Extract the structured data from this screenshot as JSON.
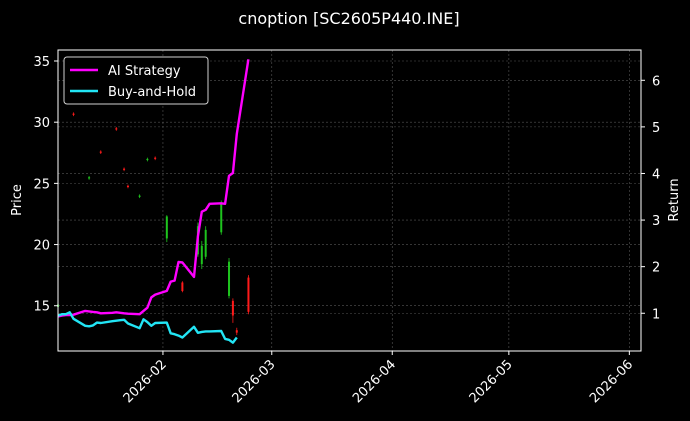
{
  "chart_data": {
    "type": "line",
    "title": "cnoption [SC2605P440.INE]",
    "xlabel": "",
    "ylabel": "Price",
    "y2label": "Return",
    "xlim": [
      "2026-01-05",
      "2026-06-04"
    ],
    "ylim": [
      11.3,
      35.9
    ],
    "y2lim": [
      0.19,
      6.65
    ],
    "grid": true,
    "legend_position": "top-left",
    "x_ticks": [
      "2026-02",
      "2026-03",
      "2026-04",
      "2026-05",
      "2026-06"
    ],
    "x_tick_dates": [
      "2026-02-01",
      "2026-03-01",
      "2026-04-01",
      "2026-05-01",
      "2026-06-01"
    ],
    "y_ticks": [
      15,
      20,
      25,
      30,
      35
    ],
    "y2_ticks": [
      1,
      2,
      3,
      4,
      5,
      6
    ],
    "series": [
      {
        "name": "AI Strategy",
        "axis": "right",
        "color": "#ff00ff",
        "points": [
          [
            "2026-01-05",
            0.93
          ],
          [
            "2026-01-06",
            0.95
          ],
          [
            "2026-01-07",
            0.96
          ],
          [
            "2026-01-08",
            0.96
          ],
          [
            "2026-01-09",
            0.97
          ],
          [
            "2026-01-12",
            1.05
          ],
          [
            "2026-01-13",
            1.04
          ],
          [
            "2026-01-14",
            1.03
          ],
          [
            "2026-01-15",
            1.02
          ],
          [
            "2026-01-16",
            1.0
          ],
          [
            "2026-01-19",
            1.01
          ],
          [
            "2026-01-20",
            1.02
          ],
          [
            "2026-01-21",
            1.01
          ],
          [
            "2026-01-22",
            1.0
          ],
          [
            "2026-01-23",
            0.99
          ],
          [
            "2026-01-26",
            0.98
          ],
          [
            "2026-01-27",
            1.05
          ],
          [
            "2026-01-28",
            1.12
          ],
          [
            "2026-01-29",
            1.34
          ],
          [
            "2026-01-30",
            1.4
          ],
          [
            "2026-02-02",
            1.48
          ],
          [
            "2026-02-03",
            1.68
          ],
          [
            "2026-02-04",
            1.7
          ],
          [
            "2026-02-05",
            2.1
          ],
          [
            "2026-02-06",
            2.09
          ],
          [
            "2026-02-09",
            1.78
          ],
          [
            "2026-02-10",
            2.65
          ],
          [
            "2026-02-11",
            3.18
          ],
          [
            "2026-02-12",
            3.22
          ],
          [
            "2026-02-13",
            3.35
          ],
          [
            "2026-02-16",
            3.36
          ],
          [
            "2026-02-17",
            3.35
          ],
          [
            "2026-02-18",
            3.95
          ],
          [
            "2026-02-19",
            4.01
          ],
          [
            "2026-02-20",
            4.85
          ],
          [
            "2026-02-23",
            6.45
          ]
        ]
      },
      {
        "name": "Buy-and-Hold",
        "axis": "right",
        "color": "#22e5f5",
        "points": [
          [
            "2026-01-05",
            0.95
          ],
          [
            "2026-01-06",
            0.98
          ],
          [
            "2026-01-07",
            0.98
          ],
          [
            "2026-01-08",
            1.02
          ],
          [
            "2026-01-09",
            0.88
          ],
          [
            "2026-01-12",
            0.73
          ],
          [
            "2026-01-13",
            0.72
          ],
          [
            "2026-01-14",
            0.74
          ],
          [
            "2026-01-15",
            0.8
          ],
          [
            "2026-01-16",
            0.79
          ],
          [
            "2026-01-19",
            0.83
          ],
          [
            "2026-01-20",
            0.84
          ],
          [
            "2026-01-21",
            0.85
          ],
          [
            "2026-01-22",
            0.86
          ],
          [
            "2026-01-23",
            0.78
          ],
          [
            "2026-01-26",
            0.68
          ],
          [
            "2026-01-27",
            0.87
          ],
          [
            "2026-01-28",
            0.81
          ],
          [
            "2026-01-29",
            0.73
          ],
          [
            "2026-01-30",
            0.79
          ],
          [
            "2026-02-02",
            0.8
          ],
          [
            "2026-02-03",
            0.57
          ],
          [
            "2026-02-04",
            0.55
          ],
          [
            "2026-02-05",
            0.52
          ],
          [
            "2026-02-06",
            0.48
          ],
          [
            "2026-02-09",
            0.71
          ],
          [
            "2026-02-10",
            0.58
          ],
          [
            "2026-02-11",
            0.6
          ],
          [
            "2026-02-12",
            0.61
          ],
          [
            "2026-02-13",
            0.61
          ],
          [
            "2026-02-16",
            0.62
          ],
          [
            "2026-02-17",
            0.45
          ],
          [
            "2026-02-18",
            0.43
          ],
          [
            "2026-02-19",
            0.37
          ],
          [
            "2026-02-20",
            0.48
          ]
        ]
      }
    ],
    "candles": {
      "axis": "left",
      "up_color": "#1ec41e",
      "down_color": "#ff1a1a",
      "points": [
        [
          "2026-01-05",
          14.9,
          15.1,
          14.8,
          15.2
        ],
        [
          "2026-01-09",
          30.7,
          30.6,
          30.5,
          30.8
        ],
        [
          "2026-01-13",
          25.4,
          25.5,
          25.3,
          25.6
        ],
        [
          "2026-01-16",
          27.6,
          27.5,
          27.4,
          27.7
        ],
        [
          "2026-01-20",
          29.5,
          29.4,
          29.3,
          29.6
        ],
        [
          "2026-01-22",
          26.2,
          26.1,
          26.0,
          26.3
        ],
        [
          "2026-01-23",
          24.8,
          24.7,
          24.6,
          24.9
        ],
        [
          "2026-01-26",
          23.9,
          24.0,
          23.8,
          24.1
        ],
        [
          "2026-01-28",
          26.9,
          27.0,
          26.8,
          27.1
        ],
        [
          "2026-01-30",
          27.1,
          27.0,
          26.9,
          27.2
        ],
        [
          "2026-02-02",
          20.5,
          22.3,
          20.2,
          22.4
        ],
        [
          "2026-02-06",
          16.9,
          16.2,
          16.1,
          17.0
        ],
        [
          "2026-02-10",
          19.2,
          21.5,
          19.0,
          21.8
        ],
        [
          "2026-02-11",
          18.4,
          19.9,
          18.0,
          20.3
        ],
        [
          "2026-02-12",
          19.0,
          21.2,
          18.8,
          21.5
        ],
        [
          "2026-02-16",
          21.0,
          23.3,
          20.8,
          23.6
        ],
        [
          "2026-02-18",
          15.8,
          18.6,
          15.6,
          18.9
        ],
        [
          "2026-02-19",
          15.4,
          14.2,
          13.6,
          15.6
        ],
        [
          "2026-02-20",
          13.0,
          12.8,
          12.6,
          13.2
        ],
        [
          "2026-02-23",
          17.3,
          14.5,
          14.3,
          17.5
        ]
      ]
    }
  }
}
